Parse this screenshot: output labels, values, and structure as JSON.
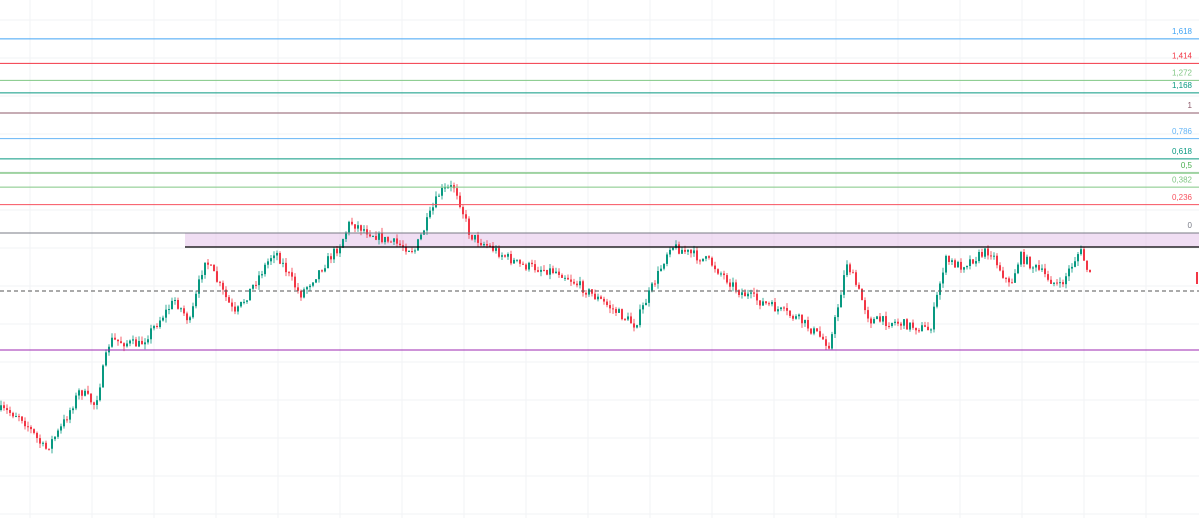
{
  "chart_data": {
    "type": "fibonacci",
    "levels": [
      {
        "value": 1.618,
        "label": "1,618",
        "color": "#42a5f5"
      },
      {
        "value": 1.414,
        "label": "1,414",
        "color": "#f23645"
      },
      {
        "value": 1.272,
        "label": "1,272",
        "color": "#81c784"
      },
      {
        "value": 1.168,
        "label": "1,168",
        "color": "#089981"
      },
      {
        "value": 1,
        "label": "1",
        "color": "#8c5a6a"
      },
      {
        "value": 0.786,
        "label": "0,786",
        "color": "#64b5f6"
      },
      {
        "value": 0.618,
        "label": "0,618",
        "color": "#089981"
      },
      {
        "value": 0.5,
        "label": "0,5",
        "color": "#4caf50"
      },
      {
        "value": 0.382,
        "label": "0,382",
        "color": "#81c784"
      },
      {
        "value": 0.236,
        "label": "0,236",
        "color": "#f7525f"
      },
      {
        "value": 0,
        "label": "0",
        "color": "#787b86"
      }
    ]
  }
}
